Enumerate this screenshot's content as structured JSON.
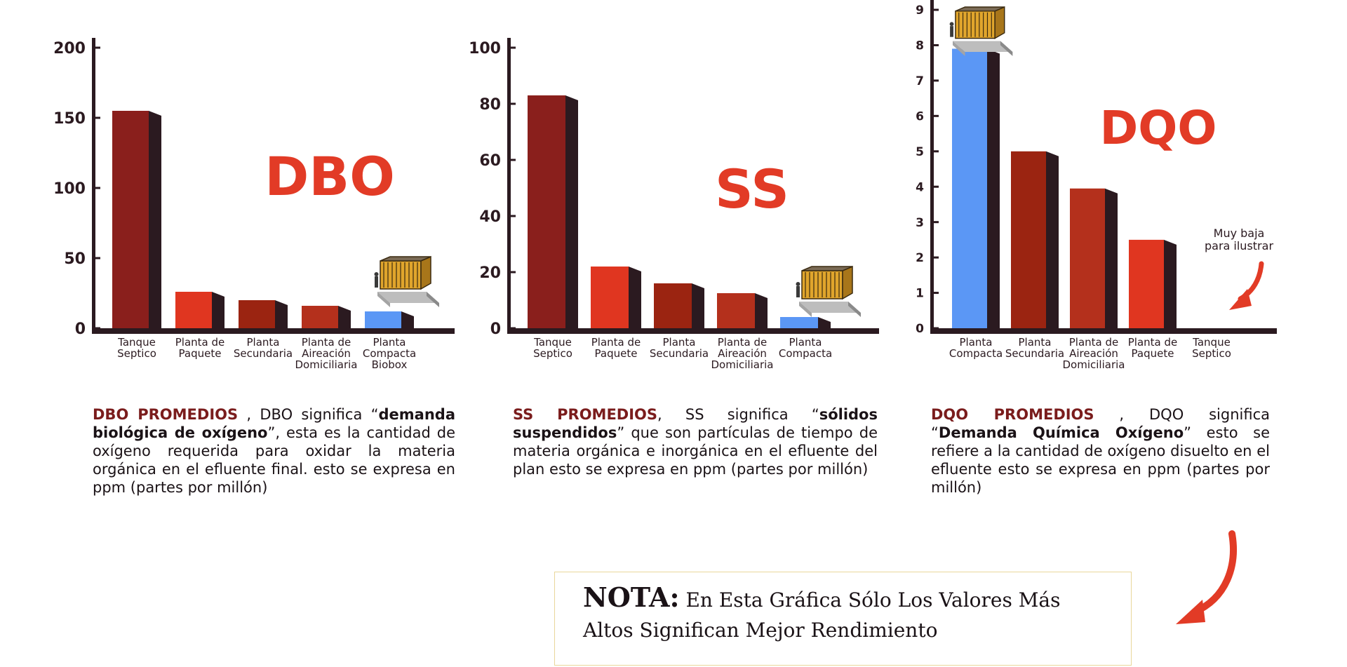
{
  "colors": {
    "compact": "#5b97f5",
    "septic": "#8a1f1c",
    "secondary": "#9b2411",
    "aeration": "#b4301c",
    "package": "#e03620",
    "title": "#e23b26",
    "axis": "#2b1a20",
    "side": "#2b1a20"
  },
  "chart_data": [
    {
      "type": "bar",
      "title": "DBO",
      "categories": [
        "Tanque\nSeptico",
        "Planta de\nPaquete",
        "Planta\nSecundaria",
        "Planta de\nAireación\nDomiciliaria",
        "Planta\nCompacta\nBiobox"
      ],
      "values": [
        155,
        26,
        20,
        16,
        12
      ],
      "bar_colors": [
        "septic",
        "package",
        "secondary",
        "aeration",
        "compact"
      ],
      "yticks": [
        0,
        50,
        100,
        150,
        200
      ],
      "ylim": [
        0,
        200
      ],
      "grid": false
    },
    {
      "type": "bar",
      "title": "SS",
      "categories": [
        "Tanque\nSeptico",
        "Planta de\nPaquete",
        "Planta\nSecundaria",
        "Planta de\nAireación\nDomiciliaria",
        "Planta\nCompacta"
      ],
      "values": [
        83,
        22,
        16,
        12.5,
        4
      ],
      "bar_colors": [
        "septic",
        "package",
        "secondary",
        "aeration",
        "compact"
      ],
      "yticks": [
        0,
        20,
        40,
        60,
        80,
        100
      ],
      "ylim": [
        0,
        100
      ],
      "grid": false
    },
    {
      "type": "bar",
      "title": "DQO",
      "categories": [
        "Planta\nCompacta",
        "Planta\nSecundaria",
        "Planta de\nAireación\nDomiciliaria",
        "Planta de\nPaquete",
        "Tanque\nSeptico"
      ],
      "values": [
        7.9,
        5.0,
        3.95,
        2.5,
        0
      ],
      "bar_colors": [
        "compact",
        "secondary",
        "aeration",
        "package",
        "septic"
      ],
      "yticks": [
        0,
        1,
        2,
        3,
        4,
        5,
        6,
        7,
        8,
        9
      ],
      "ylim": [
        0,
        9
      ],
      "grid": false,
      "annotation": "Muy baja\npara ilustrar"
    }
  ],
  "descriptions": {
    "dbo": {
      "lead": "DBO PROMEDIOS",
      "t1": " , DBO significa “",
      "b1": "demanda biológica de oxígeno",
      "t2": "”, esta es la cantidad de oxígeno requerida para oxidar la materia orgánica en el efluente final. esto se expresa en ppm (partes por millón)"
    },
    "ss": {
      "lead": "SS PROMEDIOS",
      "t1": ", SS significa “",
      "b1": "sólidos suspendidos",
      "t2": "” que son partículas de tiempo de materia orgánica e inorgánica en el efluente del plan esto se expresa en ppm (partes por millón)"
    },
    "dqo": {
      "lead": "DQO PROMEDIOS",
      "t1": " , DQO significa “",
      "b1": "Demanda Química Oxígeno",
      "t2": "” esto se refiere a la cantidad de oxígeno disuelto en el efluente esto se expresa en ppm (partes por millón)"
    }
  },
  "note": {
    "label": "NOTA:",
    "text": " En Esta Gráfica Sólo Los Valores Más Altos Significan Mejor Rendimiento"
  }
}
